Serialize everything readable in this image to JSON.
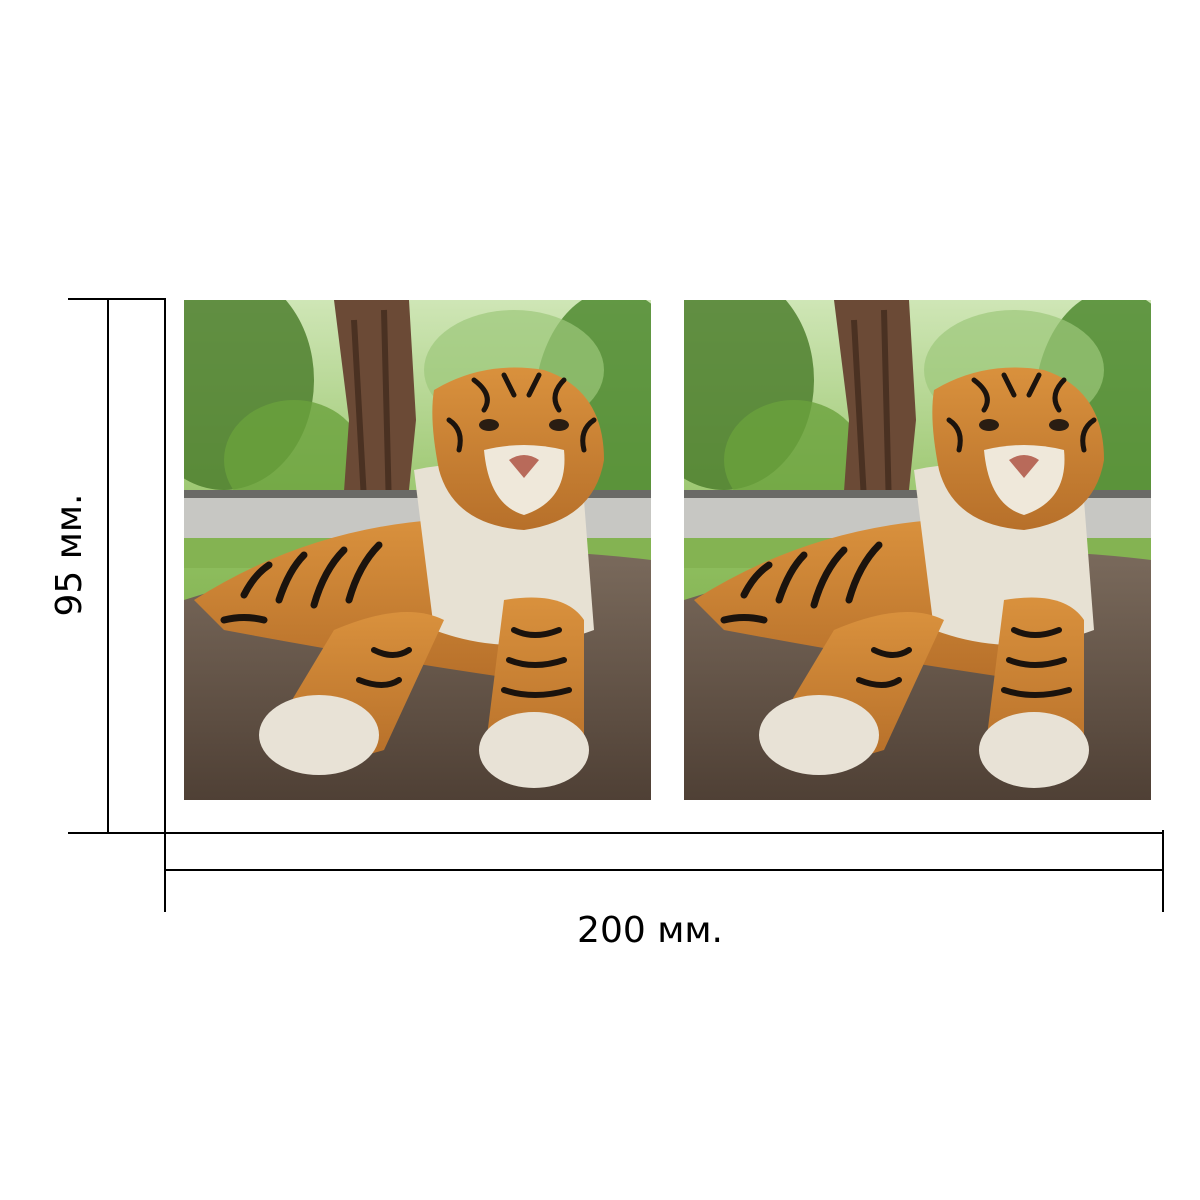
{
  "dimensions": {
    "height_label": "95 мм.",
    "width_label": "200 мм."
  },
  "panels": [
    {
      "content": "tiger-photo"
    },
    {
      "content": "tiger-photo"
    }
  ],
  "colors": {
    "lines": "#000000",
    "background": "#ffffff"
  }
}
